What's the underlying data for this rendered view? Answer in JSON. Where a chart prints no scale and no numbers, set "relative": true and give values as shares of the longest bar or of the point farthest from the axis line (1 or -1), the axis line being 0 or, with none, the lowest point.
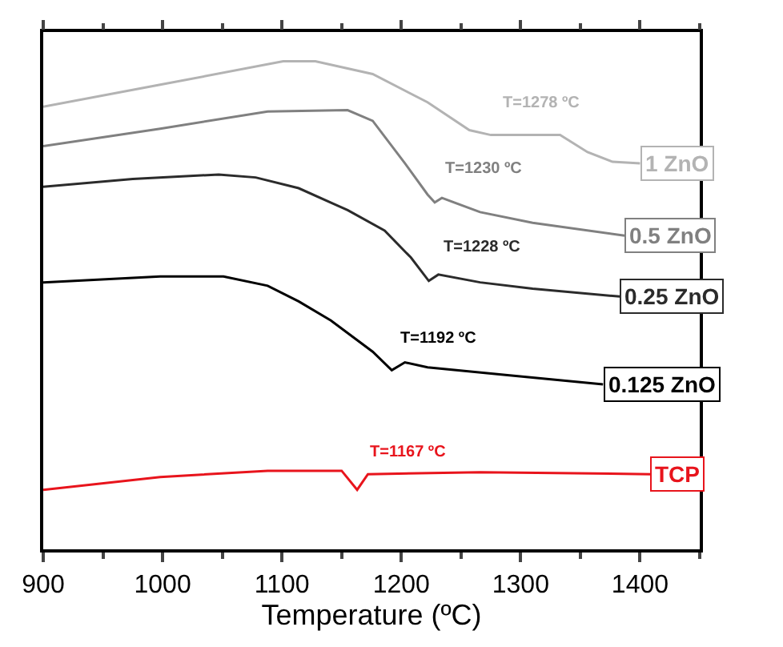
{
  "chart_data": {
    "type": "line",
    "relative": true,
    "xlabel": "Temperature (ºC)",
    "xlim": [
      900,
      1450
    ],
    "xticks": [
      900,
      1000,
      1100,
      1200,
      1300,
      1400
    ],
    "tick_labels": "x",
    "grid": false,
    "legend": false,
    "marker": "none",
    "line_style": "solid",
    "series": [
      {
        "name": "1 ZnO",
        "color": "#b3b3b3",
        "x": [
          900,
          998,
          1101,
          1128,
          1176,
          1222,
          1257,
          1275,
          1333,
          1356,
          1377,
          1400
        ],
        "values": [
          0.907,
          0.952,
          1.0,
          1.0,
          0.974,
          0.916,
          0.859,
          0.849,
          0.849,
          0.814,
          0.794,
          0.791
        ]
      },
      {
        "name": "0.5 ZnO",
        "color": "#808080",
        "x": [
          900,
          998,
          1088,
          1155,
          1176,
          1203,
          1222,
          1228,
          1234,
          1266,
          1310,
          1387
        ],
        "values": [
          0.826,
          0.862,
          0.897,
          0.9,
          0.878,
          0.791,
          0.727,
          0.711,
          0.72,
          0.691,
          0.669,
          0.643
        ]
      },
      {
        "name": "0.25 ZnO",
        "color": "#2b2b2b",
        "x": [
          900,
          975,
          1047,
          1078,
          1114,
          1155,
          1186,
          1208,
          1223,
          1231,
          1266,
          1310,
          1383
        ],
        "values": [
          0.743,
          0.759,
          0.768,
          0.762,
          0.74,
          0.695,
          0.653,
          0.598,
          0.55,
          0.563,
          0.547,
          0.534,
          0.518
        ]
      },
      {
        "name": "0.125 ZnO",
        "color": "#000000",
        "x": [
          900,
          998,
          1051,
          1088,
          1114,
          1141,
          1176,
          1192,
          1203,
          1222,
          1289,
          1369
        ],
        "values": [
          0.547,
          0.559,
          0.559,
          0.54,
          0.508,
          0.469,
          0.405,
          0.367,
          0.383,
          0.373,
          0.357,
          0.338
        ]
      },
      {
        "name": "TCP",
        "color": "#e8141c",
        "x": [
          900,
          998,
          1088,
          1150,
          1163,
          1172,
          1266,
          1409
        ],
        "values": [
          0.122,
          0.148,
          0.161,
          0.161,
          0.122,
          0.154,
          0.158,
          0.154
        ]
      }
    ],
    "annotations": [
      {
        "text": "T=1278 ºC",
        "x": 1278,
        "y": 0.849
      },
      {
        "text": "T=1230 ºC",
        "x": 1230,
        "y": 0.714
      },
      {
        "text": "T=1228 ºC",
        "x": 1228,
        "y": 0.554
      },
      {
        "text": "T=1192 ºC",
        "x": 1192,
        "y": 0.367
      },
      {
        "text": "T=1167 ºC",
        "x": 1167,
        "y": 0.136
      }
    ]
  }
}
